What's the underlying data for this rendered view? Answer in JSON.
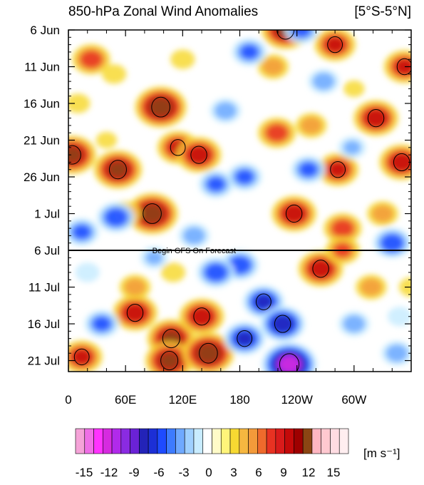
{
  "chart_data": {
    "type": "heatmap",
    "title": "850-hPa Zonal Wind Anomalies",
    "region_label": "[5°S-5°N]",
    "units_label": "[m s⁻¹]",
    "x_ticks": [
      "0",
      "60E",
      "120E",
      "180",
      "120W",
      "60W"
    ],
    "x_tick_lon": [
      0,
      60,
      120,
      180,
      240,
      300
    ],
    "x_range_lon": [
      0,
      360
    ],
    "y_ticks": [
      "6 Jun",
      "11 Jun",
      "16 Jun",
      "21 Jun",
      "26 Jun",
      "1 Jul",
      "6 Jul",
      "11 Jul",
      "16 Jul",
      "21 Jul"
    ],
    "y_tick_day": [
      0,
      5,
      10,
      15,
      20,
      25,
      30,
      35,
      40,
      45
    ],
    "y_range_day": [
      0,
      46.5
    ],
    "forecast_start_day": 30,
    "forecast_label": "Begin GFS On Forecast",
    "colorbar_labels": [
      "-15",
      "-12",
      "-9",
      "-6",
      "-3",
      "0",
      "3",
      "6",
      "9",
      "12",
      "15"
    ],
    "colorbar_colors": [
      "#f5a3d8",
      "#ef6fe6",
      "#ff33ff",
      "#d62ae0",
      "#b12aeb",
      "#8a2be2",
      "#6a22d6",
      "#2323b8",
      "#1c2fd6",
      "#1e4bff",
      "#3d7bff",
      "#6fa9ff",
      "#9fd0ff",
      "#c8ecff",
      "#ffffff",
      "#fffbc8",
      "#fff47a",
      "#f7d932",
      "#f6b740",
      "#f39a3a",
      "#ef6a2c",
      "#e83222",
      "#d91b1b",
      "#c40a0a",
      "#9e0000",
      "#8b4513",
      "#ffb6c1",
      "#ffc8d0",
      "#ffdce2",
      "#ffeef0"
    ],
    "anomaly_blobs": [
      {
        "lon": 97,
        "day": 10.5,
        "value": 11
      },
      {
        "lon": 24,
        "day": 4,
        "value": 7
      },
      {
        "lon": 4,
        "day": 17,
        "value": 10
      },
      {
        "lon": 52,
        "day": 19,
        "value": 10
      },
      {
        "lon": 88,
        "day": 25,
        "value": 11
      },
      {
        "lon": 115,
        "day": 16,
        "value": 8
      },
      {
        "lon": 137,
        "day": 17,
        "value": 9
      },
      {
        "lon": 228,
        "day": 0,
        "value": 10
      },
      {
        "lon": 219,
        "day": 14,
        "value": 7
      },
      {
        "lon": 280,
        "day": 2,
        "value": 8
      },
      {
        "lon": 323,
        "day": 12,
        "value": 9
      },
      {
        "lon": 353,
        "day": 5,
        "value": 8
      },
      {
        "lon": 350,
        "day": 18,
        "value": 9
      },
      {
        "lon": 237,
        "day": 25,
        "value": 9
      },
      {
        "lon": 283,
        "day": 19,
        "value": 8
      },
      {
        "lon": 288,
        "day": 27,
        "value": 7
      },
      {
        "lon": 265,
        "day": 32.5,
        "value": 9
      },
      {
        "lon": 288,
        "day": 30,
        "value": 6
      },
      {
        "lon": 70,
        "day": 38.5,
        "value": 9
      },
      {
        "lon": 108,
        "day": 42,
        "value": 10
      },
      {
        "lon": 106,
        "day": 45,
        "value": 10
      },
      {
        "lon": 140,
        "day": 39,
        "value": 9
      },
      {
        "lon": 147,
        "day": 44,
        "value": 11
      },
      {
        "lon": 14,
        "day": 44.5,
        "value": 8
      },
      {
        "lon": 70,
        "day": 35,
        "value": 5
      },
      {
        "lon": 60,
        "day": 25,
        "value": 5
      },
      {
        "lon": 215,
        "day": 5,
        "value": 5
      },
      {
        "lon": 255,
        "day": 13,
        "value": 5
      },
      {
        "lon": 330,
        "day": 25,
        "value": 5
      },
      {
        "lon": 318,
        "day": 35,
        "value": 5
      },
      {
        "lon": 245,
        "day": 0,
        "value": -6
      },
      {
        "lon": 165,
        "day": 11,
        "value": -5
      },
      {
        "lon": 190,
        "day": 3,
        "value": -6
      },
      {
        "lon": 155,
        "day": 21,
        "value": -6
      },
      {
        "lon": 185,
        "day": 20,
        "value": -6
      },
      {
        "lon": 252,
        "day": 19,
        "value": -6
      },
      {
        "lon": 50,
        "day": 25.5,
        "value": -7
      },
      {
        "lon": 14,
        "day": 27.5,
        "value": -6
      },
      {
        "lon": 132,
        "day": 28,
        "value": -5
      },
      {
        "lon": 268,
        "day": 7,
        "value": -5
      },
      {
        "lon": 298,
        "day": 16,
        "value": -4
      },
      {
        "lon": 205,
        "day": 37,
        "value": -8
      },
      {
        "lon": 225,
        "day": 40,
        "value": -9
      },
      {
        "lon": 232,
        "day": 45.5,
        "value": -12
      },
      {
        "lon": 185,
        "day": 42,
        "value": -8
      },
      {
        "lon": 180,
        "day": 32,
        "value": -7
      },
      {
        "lon": 155,
        "day": 33,
        "value": -7
      },
      {
        "lon": 35,
        "day": 40,
        "value": -6
      },
      {
        "lon": 340,
        "day": 29,
        "value": -7
      },
      {
        "lon": 300,
        "day": 40,
        "value": -5
      },
      {
        "lon": 345,
        "day": 44,
        "value": -5
      },
      {
        "lon": 90,
        "day": 31,
        "value": -4
      },
      {
        "lon": 20,
        "day": 33,
        "value": -3
      },
      {
        "lon": 348,
        "day": 39,
        "value": -3
      },
      {
        "lon": 10,
        "day": 10,
        "value": 3
      },
      {
        "lon": 48,
        "day": 6,
        "value": 3
      },
      {
        "lon": 120,
        "day": 4,
        "value": 3
      },
      {
        "lon": 110,
        "day": 33,
        "value": 3
      },
      {
        "lon": 360,
        "day": 35,
        "value": 3
      },
      {
        "lon": 300,
        "day": 8,
        "value": 2
      },
      {
        "lon": 40,
        "day": 15,
        "value": 2
      }
    ]
  }
}
